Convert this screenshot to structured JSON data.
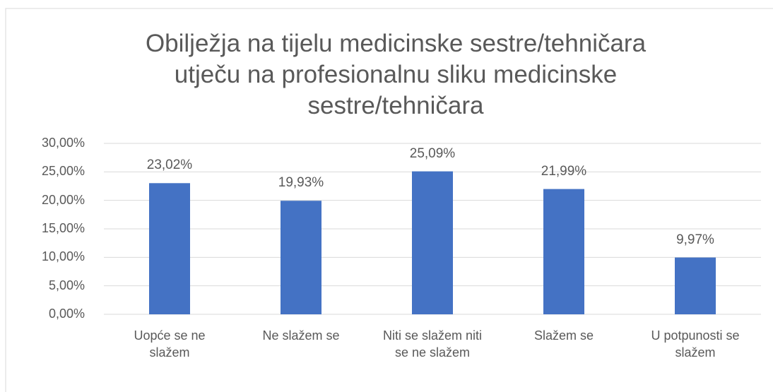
{
  "chart_data": {
    "type": "bar",
    "title": "Obilježja na tijelu medicinske sestre/tehničara utječu na profesionalnu sliku medicinske sestre/tehničara",
    "categories": [
      "Uopće se ne slažem",
      "Ne slažem se",
      "Niti se slažem niti se ne slažem",
      "Slažem se",
      "U potpunosti se slažem"
    ],
    "values": [
      23.02,
      19.93,
      25.09,
      21.99,
      9.97
    ],
    "value_labels": [
      "23,02%",
      "19,93%",
      "25,09%",
      "21,99%",
      "9,97%"
    ],
    "color": "#4472c4",
    "ylim": [
      0,
      30
    ],
    "yticks": [
      {
        "value": 0,
        "label": "0,00%"
      },
      {
        "value": 5,
        "label": "5,00%"
      },
      {
        "value": 10,
        "label": "10,00%"
      },
      {
        "value": 15,
        "label": "15,00%"
      },
      {
        "value": 20,
        "label": "20,00%"
      },
      {
        "value": 25,
        "label": "25,00%"
      },
      {
        "value": 30,
        "label": "30,00%"
      }
    ],
    "grid": true
  }
}
